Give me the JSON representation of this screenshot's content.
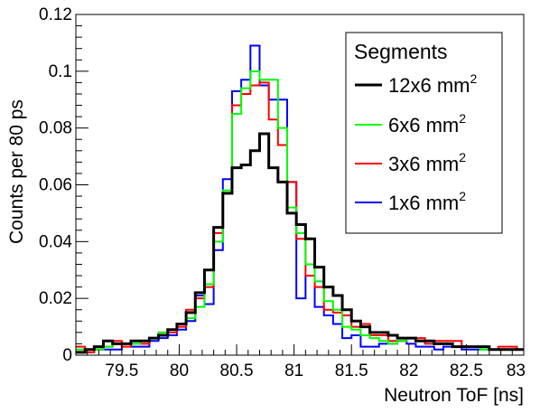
{
  "chart_data": {
    "type": "line",
    "title": "",
    "xlabel": "Neutron ToF [ns]",
    "ylabel": "Counts per 80 ps",
    "xlim": [
      79.1,
      83.0
    ],
    "ylim": [
      0,
      0.12
    ],
    "xticks": [
      79.5,
      80,
      80.5,
      81,
      81.5,
      82,
      82.5,
      83
    ],
    "xtick_labels": [
      "79.5",
      "80",
      "80.5",
      "81",
      "81.5",
      "82",
      "82.5",
      "83"
    ],
    "yticks": [
      0,
      0.02,
      0.04,
      0.06,
      0.08,
      0.1,
      0.12
    ],
    "ytick_labels": [
      "0",
      "0.02",
      "0.04",
      "0.06",
      "0.08",
      "0.1",
      "0.12"
    ],
    "bin_width": 0.08,
    "grid": false,
    "histogram_style": "step",
    "legend": {
      "title": "Segments",
      "position": "top-right",
      "entries": [
        {
          "base": "12x6 mm",
          "sup": "2"
        },
        {
          "base": "6x6 mm",
          "sup": "2"
        },
        {
          "base": "3x6 mm",
          "sup": "2"
        },
        {
          "base": "1x6 mm",
          "sup": "2"
        }
      ]
    },
    "series": [
      {
        "name": "12x6 mm2",
        "color": "#000000",
        "stroke": 3,
        "x": [
          79.1,
          79.18,
          79.26,
          79.34,
          79.42,
          79.5,
          79.58,
          79.66,
          79.74,
          79.82,
          79.9,
          79.98,
          80.06,
          80.14,
          80.22,
          80.3,
          80.38,
          80.46,
          80.54,
          80.62,
          80.7,
          80.78,
          80.86,
          80.94,
          81.02,
          81.1,
          81.18,
          81.26,
          81.34,
          81.42,
          81.5,
          81.58,
          81.66,
          81.74,
          81.82,
          81.9,
          81.98,
          82.06,
          82.14,
          82.22,
          82.3,
          82.38,
          82.46,
          82.54,
          82.62,
          82.7,
          82.78,
          82.86,
          82.94
        ],
        "values": [
          0.001,
          0.002,
          0.003,
          0.005,
          0.004,
          0.004,
          0.005,
          0.005,
          0.006,
          0.007,
          0.009,
          0.011,
          0.015,
          0.022,
          0.03,
          0.045,
          0.057,
          0.066,
          0.067,
          0.072,
          0.078,
          0.066,
          0.061,
          0.05,
          0.046,
          0.041,
          0.031,
          0.024,
          0.021,
          0.016,
          0.012,
          0.01,
          0.008,
          0.008,
          0.007,
          0.006,
          0.006,
          0.005,
          0.005,
          0.004,
          0.004,
          0.003,
          0.003,
          0.003,
          0.003,
          0.002,
          0.002,
          0.002,
          0.002
        ]
      },
      {
        "name": "6x6 mm2",
        "color": "#00ff00",
        "stroke": 2,
        "x": [
          79.1,
          79.18,
          79.26,
          79.34,
          79.42,
          79.5,
          79.58,
          79.66,
          79.74,
          79.82,
          79.9,
          79.98,
          80.06,
          80.14,
          80.22,
          80.3,
          80.38,
          80.46,
          80.54,
          80.62,
          80.7,
          80.78,
          80.86,
          80.94,
          81.02,
          81.1,
          81.18,
          81.26,
          81.34,
          81.42,
          81.5,
          81.58,
          81.66,
          81.74,
          81.82,
          81.9,
          81.98,
          82.06,
          82.14,
          82.22,
          82.3,
          82.38,
          82.46,
          82.54,
          82.62,
          82.7,
          82.78,
          82.86,
          82.94
        ],
        "values": [
          0.002,
          0.002,
          0.002,
          0.003,
          0.004,
          0.004,
          0.004,
          0.005,
          0.006,
          0.008,
          0.009,
          0.011,
          0.013,
          0.017,
          0.025,
          0.04,
          0.058,
          0.085,
          0.094,
          0.1,
          0.097,
          0.097,
          0.08,
          0.052,
          0.043,
          0.032,
          0.026,
          0.019,
          0.016,
          0.01,
          0.009,
          0.007,
          0.006,
          0.005,
          0.004,
          0.005,
          0.006,
          0.005,
          0.005,
          0.004,
          0.004,
          0.003,
          0.003,
          0.003,
          0.002,
          0.002,
          0.002,
          0.002,
          0.002
        ]
      },
      {
        "name": "3x6 mm2",
        "color": "#ff0000",
        "stroke": 2,
        "x": [
          79.1,
          79.18,
          79.26,
          79.34,
          79.42,
          79.5,
          79.58,
          79.66,
          79.74,
          79.82,
          79.9,
          79.98,
          80.06,
          80.14,
          80.22,
          80.3,
          80.38,
          80.46,
          80.54,
          80.62,
          80.7,
          80.78,
          80.86,
          80.94,
          81.02,
          81.1,
          81.18,
          81.26,
          81.34,
          81.42,
          81.5,
          81.58,
          81.66,
          81.74,
          81.82,
          81.9,
          81.98,
          82.06,
          82.14,
          82.22,
          82.3,
          82.38,
          82.46,
          82.54,
          82.62,
          82.7,
          82.78,
          82.86,
          82.94
        ],
        "values": [
          0.003,
          0.001,
          0.002,
          0.003,
          0.005,
          0.003,
          0.005,
          0.004,
          0.006,
          0.008,
          0.008,
          0.01,
          0.016,
          0.02,
          0.024,
          0.043,
          0.057,
          0.088,
          0.092,
          0.095,
          0.096,
          0.083,
          0.074,
          0.061,
          0.041,
          0.028,
          0.024,
          0.016,
          0.015,
          0.014,
          0.01,
          0.011,
          0.007,
          0.007,
          0.005,
          0.005,
          0.006,
          0.006,
          0.004,
          0.005,
          0.005,
          0.005,
          0.003,
          0.003,
          0.003,
          0.002,
          0.003,
          0.003,
          0.002
        ]
      },
      {
        "name": "1x6 mm2",
        "color": "#0000ff",
        "stroke": 2,
        "x": [
          79.1,
          79.18,
          79.26,
          79.34,
          79.42,
          79.5,
          79.58,
          79.66,
          79.74,
          79.82,
          79.9,
          79.98,
          80.06,
          80.14,
          80.22,
          80.3,
          80.38,
          80.46,
          80.54,
          80.62,
          80.7,
          80.78,
          80.86,
          80.94,
          81.02,
          81.1,
          81.18,
          81.26,
          81.34,
          81.42,
          81.5,
          81.58,
          81.66,
          81.74,
          81.82,
          81.9,
          81.98,
          82.06,
          82.14,
          82.22,
          82.3,
          82.38,
          82.46,
          82.54,
          82.62,
          82.7,
          82.78,
          82.86,
          82.94
        ],
        "values": [
          0.001,
          0.002,
          0.002,
          0.002,
          0.002,
          0.004,
          0.003,
          0.003,
          0.005,
          0.006,
          0.007,
          0.009,
          0.012,
          0.021,
          0.018,
          0.037,
          0.062,
          0.093,
          0.097,
          0.109,
          0.095,
          0.09,
          0.09,
          0.061,
          0.02,
          0.028,
          0.017,
          0.014,
          0.011,
          0.006,
          0.007,
          0.003,
          0.003,
          0.004,
          0.004,
          0.005,
          0.004,
          0.003,
          0.003,
          0.002,
          0.003,
          0.003,
          0.002,
          0.002,
          0.002,
          0.002,
          0.002,
          0.002,
          0.002
        ]
      }
    ]
  }
}
